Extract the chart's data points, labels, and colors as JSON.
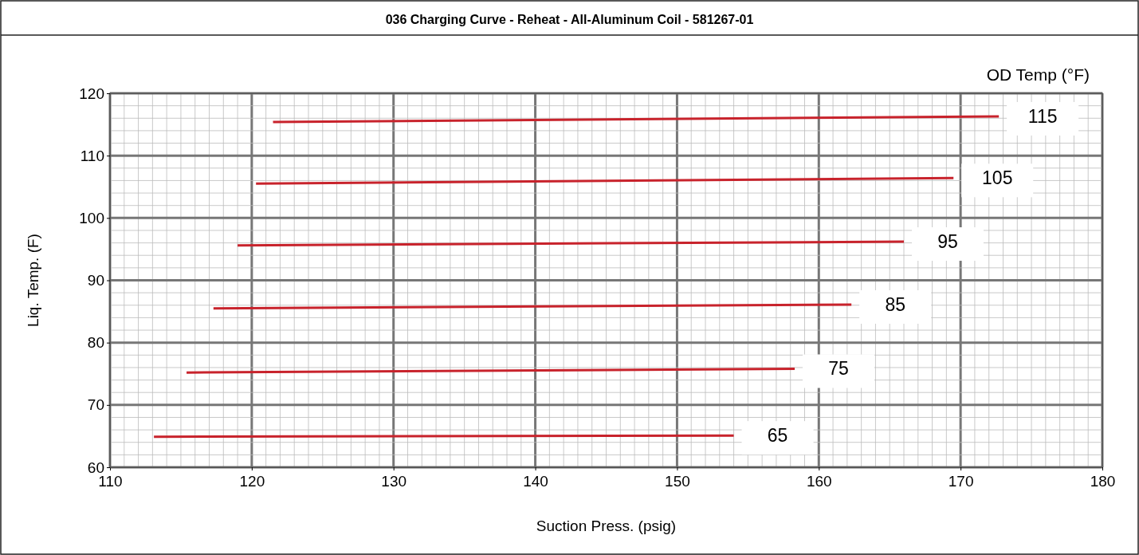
{
  "chart_data": {
    "type": "line",
    "title": "036 Charging Curve - Reheat - All-Aluminum Coil - 581267-01",
    "xlabel": "Suction Press. (psig)",
    "ylabel": "Liq. Temp. (F)",
    "legend_title": "OD Temp (°F)",
    "xlim": [
      110,
      180
    ],
    "xticks": [
      110,
      120,
      130,
      140,
      150,
      160,
      170,
      180
    ],
    "ylim": [
      60,
      120
    ],
    "yticks": [
      60,
      70,
      80,
      90,
      100,
      110,
      120
    ],
    "grid": true,
    "marker": "none",
    "line_style": "solid",
    "series": [
      {
        "name": "115",
        "color": "#c8232c",
        "x": [
          121.5,
          172.7
        ],
        "values": [
          115.4,
          116.3
        ]
      },
      {
        "name": "105",
        "color": "#c8232c",
        "x": [
          120.3,
          169.5
        ],
        "values": [
          105.5,
          106.4
        ]
      },
      {
        "name": "95",
        "color": "#c8232c",
        "x": [
          119.0,
          166.0
        ],
        "values": [
          95.6,
          96.2
        ]
      },
      {
        "name": "85",
        "color": "#c8232c",
        "x": [
          117.3,
          162.3
        ],
        "values": [
          85.5,
          86.1
        ]
      },
      {
        "name": "75",
        "color": "#c8232c",
        "x": [
          115.4,
          158.3
        ],
        "values": [
          75.2,
          75.8
        ]
      },
      {
        "name": "65",
        "color": "#c8232c",
        "x": [
          113.1,
          154.0
        ],
        "values": [
          64.9,
          65.1
        ]
      }
    ]
  }
}
